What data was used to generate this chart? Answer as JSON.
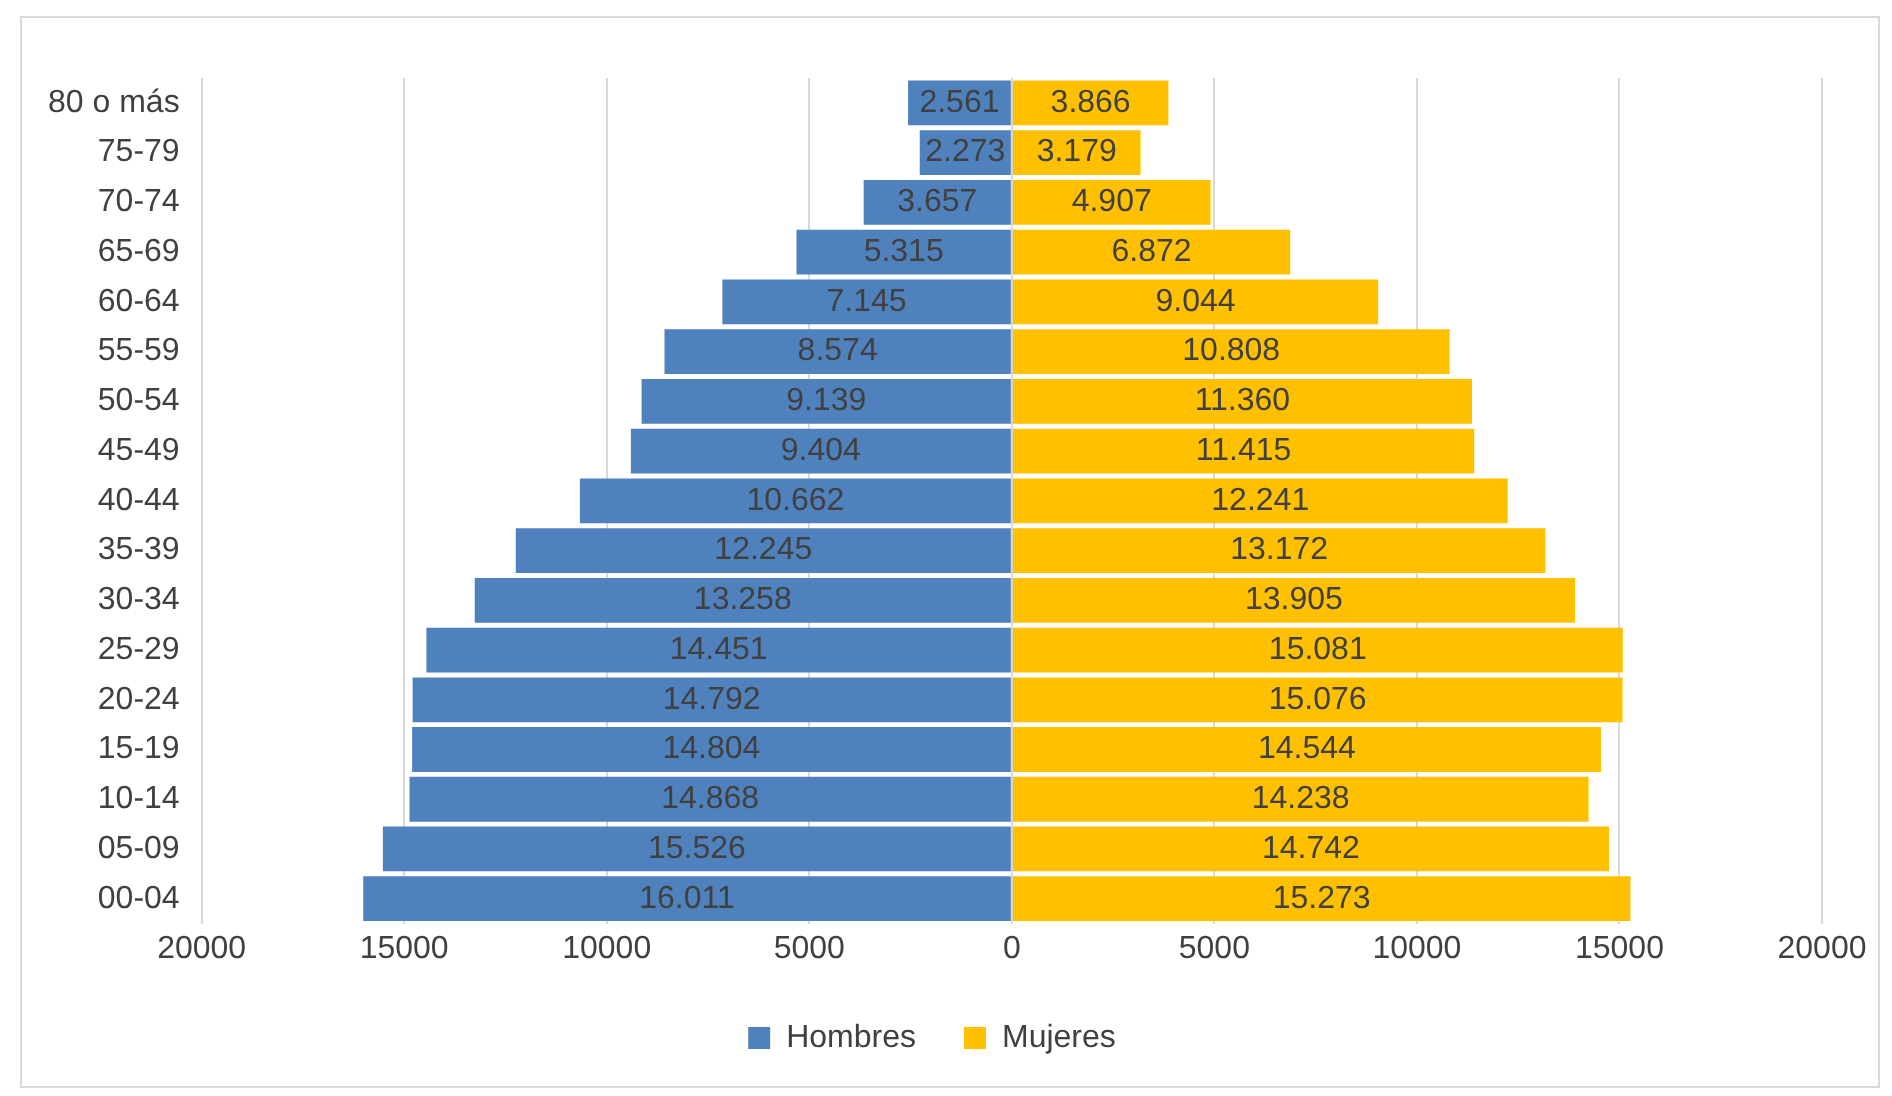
{
  "chart_data": {
    "type": "bar",
    "orientation": "horizontal",
    "grid": "x",
    "legend": "bottom",
    "categories": [
      "80 o más",
      "75-79",
      "70-74",
      "65-69",
      "60-64",
      "55-59",
      "50-54",
      "45-49",
      "40-44",
      "35-39",
      "30-34",
      "25-29",
      "20-24",
      "15-19",
      "10-14",
      "05-09",
      "00-04"
    ],
    "xlim": [
      -20000,
      20000
    ],
    "xticks": [
      {
        "value": -20000,
        "label": "20000"
      },
      {
        "value": -15000,
        "label": "15000"
      },
      {
        "value": -10000,
        "label": "10000"
      },
      {
        "value": -5000,
        "label": "5000"
      },
      0,
      5000,
      10000,
      15000,
      20000
    ],
    "series": [
      {
        "name": "Hombres",
        "color": "#4f81bd",
        "base": [
          -2561,
          -2273,
          -3657,
          -5315,
          -7145,
          -8574,
          -9139,
          -9404,
          -10662,
          -12245,
          -13258,
          -14451,
          -14792,
          -14804,
          -14868,
          -15526,
          -16011
        ],
        "values": [
          2561,
          2273,
          3657,
          5315,
          7145,
          8574,
          9139,
          9404,
          10662,
          12245,
          13258,
          14451,
          14792,
          14804,
          14868,
          15526,
          16011
        ],
        "value_labels": [
          "2.561",
          "2.273",
          "3.657",
          "5.315",
          "7.145",
          "8.574",
          "9.139",
          "9.404",
          "10.662",
          "12.245",
          "13.258",
          "14.451",
          "14.792",
          "14.804",
          "14.868",
          "15.526",
          "16.011"
        ]
      },
      {
        "name": "Mujeres",
        "color": "#ffc000",
        "values": [
          3866,
          3179,
          4907,
          6872,
          9044,
          10808,
          11360,
          11415,
          12241,
          13172,
          13905,
          15081,
          15076,
          14544,
          14238,
          14742,
          15273
        ],
        "value_labels": [
          "3.866",
          "3.179",
          "4.907",
          "6.872",
          "9.044",
          "10.808",
          "11.360",
          "11.415",
          "12.241",
          "13.172",
          "13.905",
          "15.081",
          "15.076",
          "14.544",
          "14.238",
          "14.742",
          "15.273"
        ]
      }
    ]
  }
}
